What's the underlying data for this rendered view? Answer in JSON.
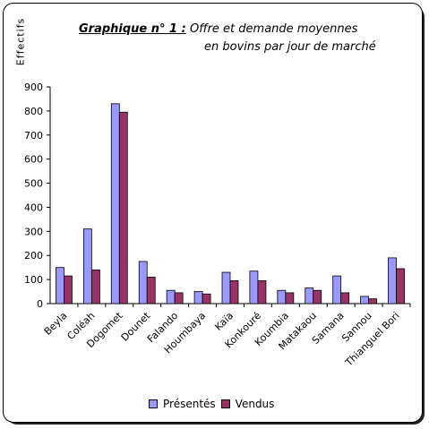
{
  "colors": {
    "presentes": "#9999FF",
    "vendus": "#993366"
  },
  "title": {
    "prefix": "Graphique n° 1 :",
    "line1": "Offre et demande moyennes",
    "line2": "en bovins par jour de marché"
  },
  "chart_data": {
    "type": "bar",
    "ylabel": "Effectifs",
    "ylim": [
      0,
      900
    ],
    "yticks": [
      0,
      100,
      200,
      300,
      400,
      500,
      600,
      700,
      800,
      900
    ],
    "categories": [
      "Beyla",
      "Coléah",
      "Dogomet",
      "Dounet",
      "Falando",
      "Houmbaya",
      "Kaïa",
      "Konkouré",
      "Koumbia",
      "Matakaou",
      "Samana",
      "Sannou",
      "Thianguel Bori"
    ],
    "series": [
      {
        "name": "Présentés",
        "values": [
          150,
          310,
          830,
          175,
          55,
          50,
          130,
          135,
          55,
          65,
          115,
          30,
          190
        ]
      },
      {
        "name": "Vendus",
        "values": [
          115,
          140,
          795,
          110,
          45,
          40,
          95,
          95,
          45,
          55,
          45,
          20,
          145
        ]
      }
    ],
    "legend_position": "bottom",
    "grid": false
  }
}
